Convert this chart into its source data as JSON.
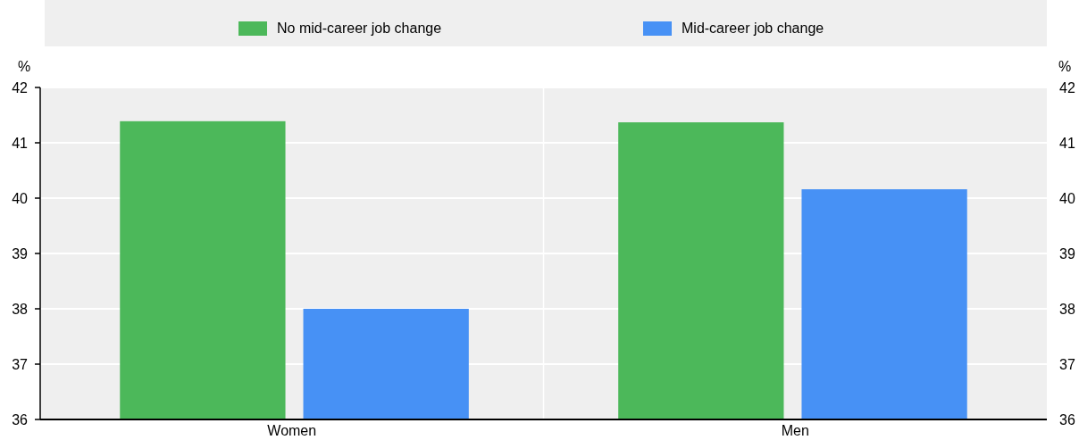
{
  "chart_data": {
    "type": "bar",
    "categories": [
      "Women",
      "Men"
    ],
    "series": [
      {
        "name": "No mid-career job change",
        "color": "#4cb85a",
        "values": [
          41.39,
          41.37
        ]
      },
      {
        "name": "Mid-career job change",
        "color": "#4791f5",
        "values": [
          38.0,
          40.16
        ]
      }
    ],
    "ylabel": "%",
    "y2label": "%",
    "ylim": [
      36,
      42
    ],
    "yticks": [
      36,
      37,
      38,
      39,
      40,
      41,
      42
    ],
    "y2lim": [
      36,
      42
    ],
    "y2ticks": [
      36,
      37,
      38,
      39,
      40,
      41,
      42
    ],
    "grid": "y",
    "legend": "top"
  }
}
